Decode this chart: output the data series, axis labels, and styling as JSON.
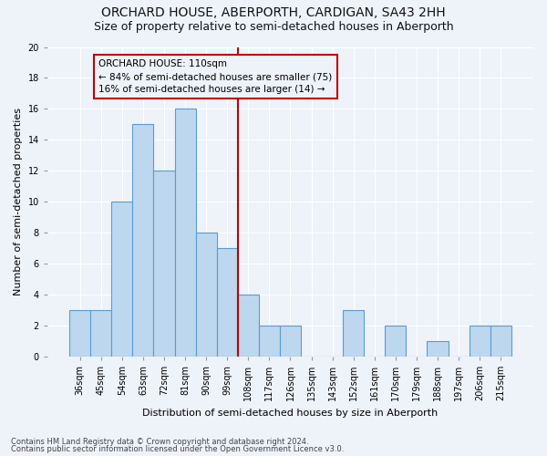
{
  "title": "ORCHARD HOUSE, ABERPORTH, CARDIGAN, SA43 2HH",
  "subtitle": "Size of property relative to semi-detached houses in Aberporth",
  "xlabel": "Distribution of semi-detached houses by size in Aberporth",
  "ylabel": "Number of semi-detached properties",
  "categories": [
    "36sqm",
    "45sqm",
    "54sqm",
    "63sqm",
    "72sqm",
    "81sqm",
    "90sqm",
    "99sqm",
    "108sqm",
    "117sqm",
    "126sqm",
    "135sqm",
    "143sqm",
    "152sqm",
    "161sqm",
    "170sqm",
    "179sqm",
    "188sqm",
    "197sqm",
    "206sqm",
    "215sqm"
  ],
  "values": [
    3,
    3,
    10,
    15,
    12,
    16,
    8,
    7,
    4,
    2,
    2,
    0,
    0,
    3,
    0,
    2,
    0,
    1,
    0,
    2,
    2
  ],
  "bar_color": "#bdd7ee",
  "bar_edge_color": "#5b9bd5",
  "highlight_line_color": "#c00000",
  "annotation_box_text": "ORCHARD HOUSE: 110sqm\n← 84% of semi-detached houses are smaller (75)\n16% of semi-detached houses are larger (14) →",
  "box_edge_color": "#c00000",
  "ylim": [
    0,
    20
  ],
  "yticks": [
    0,
    2,
    4,
    6,
    8,
    10,
    12,
    14,
    16,
    18,
    20
  ],
  "footer1": "Contains HM Land Registry data © Crown copyright and database right 2024.",
  "footer2": "Contains public sector information licensed under the Open Government Licence v3.0.",
  "bg_color": "#eef2f9",
  "grid_color": "#ffffff",
  "title_fontsize": 10,
  "subtitle_fontsize": 9,
  "tick_fontsize": 7,
  "label_fontsize": 8,
  "footer_fontsize": 6,
  "ann_fontsize": 7.5
}
